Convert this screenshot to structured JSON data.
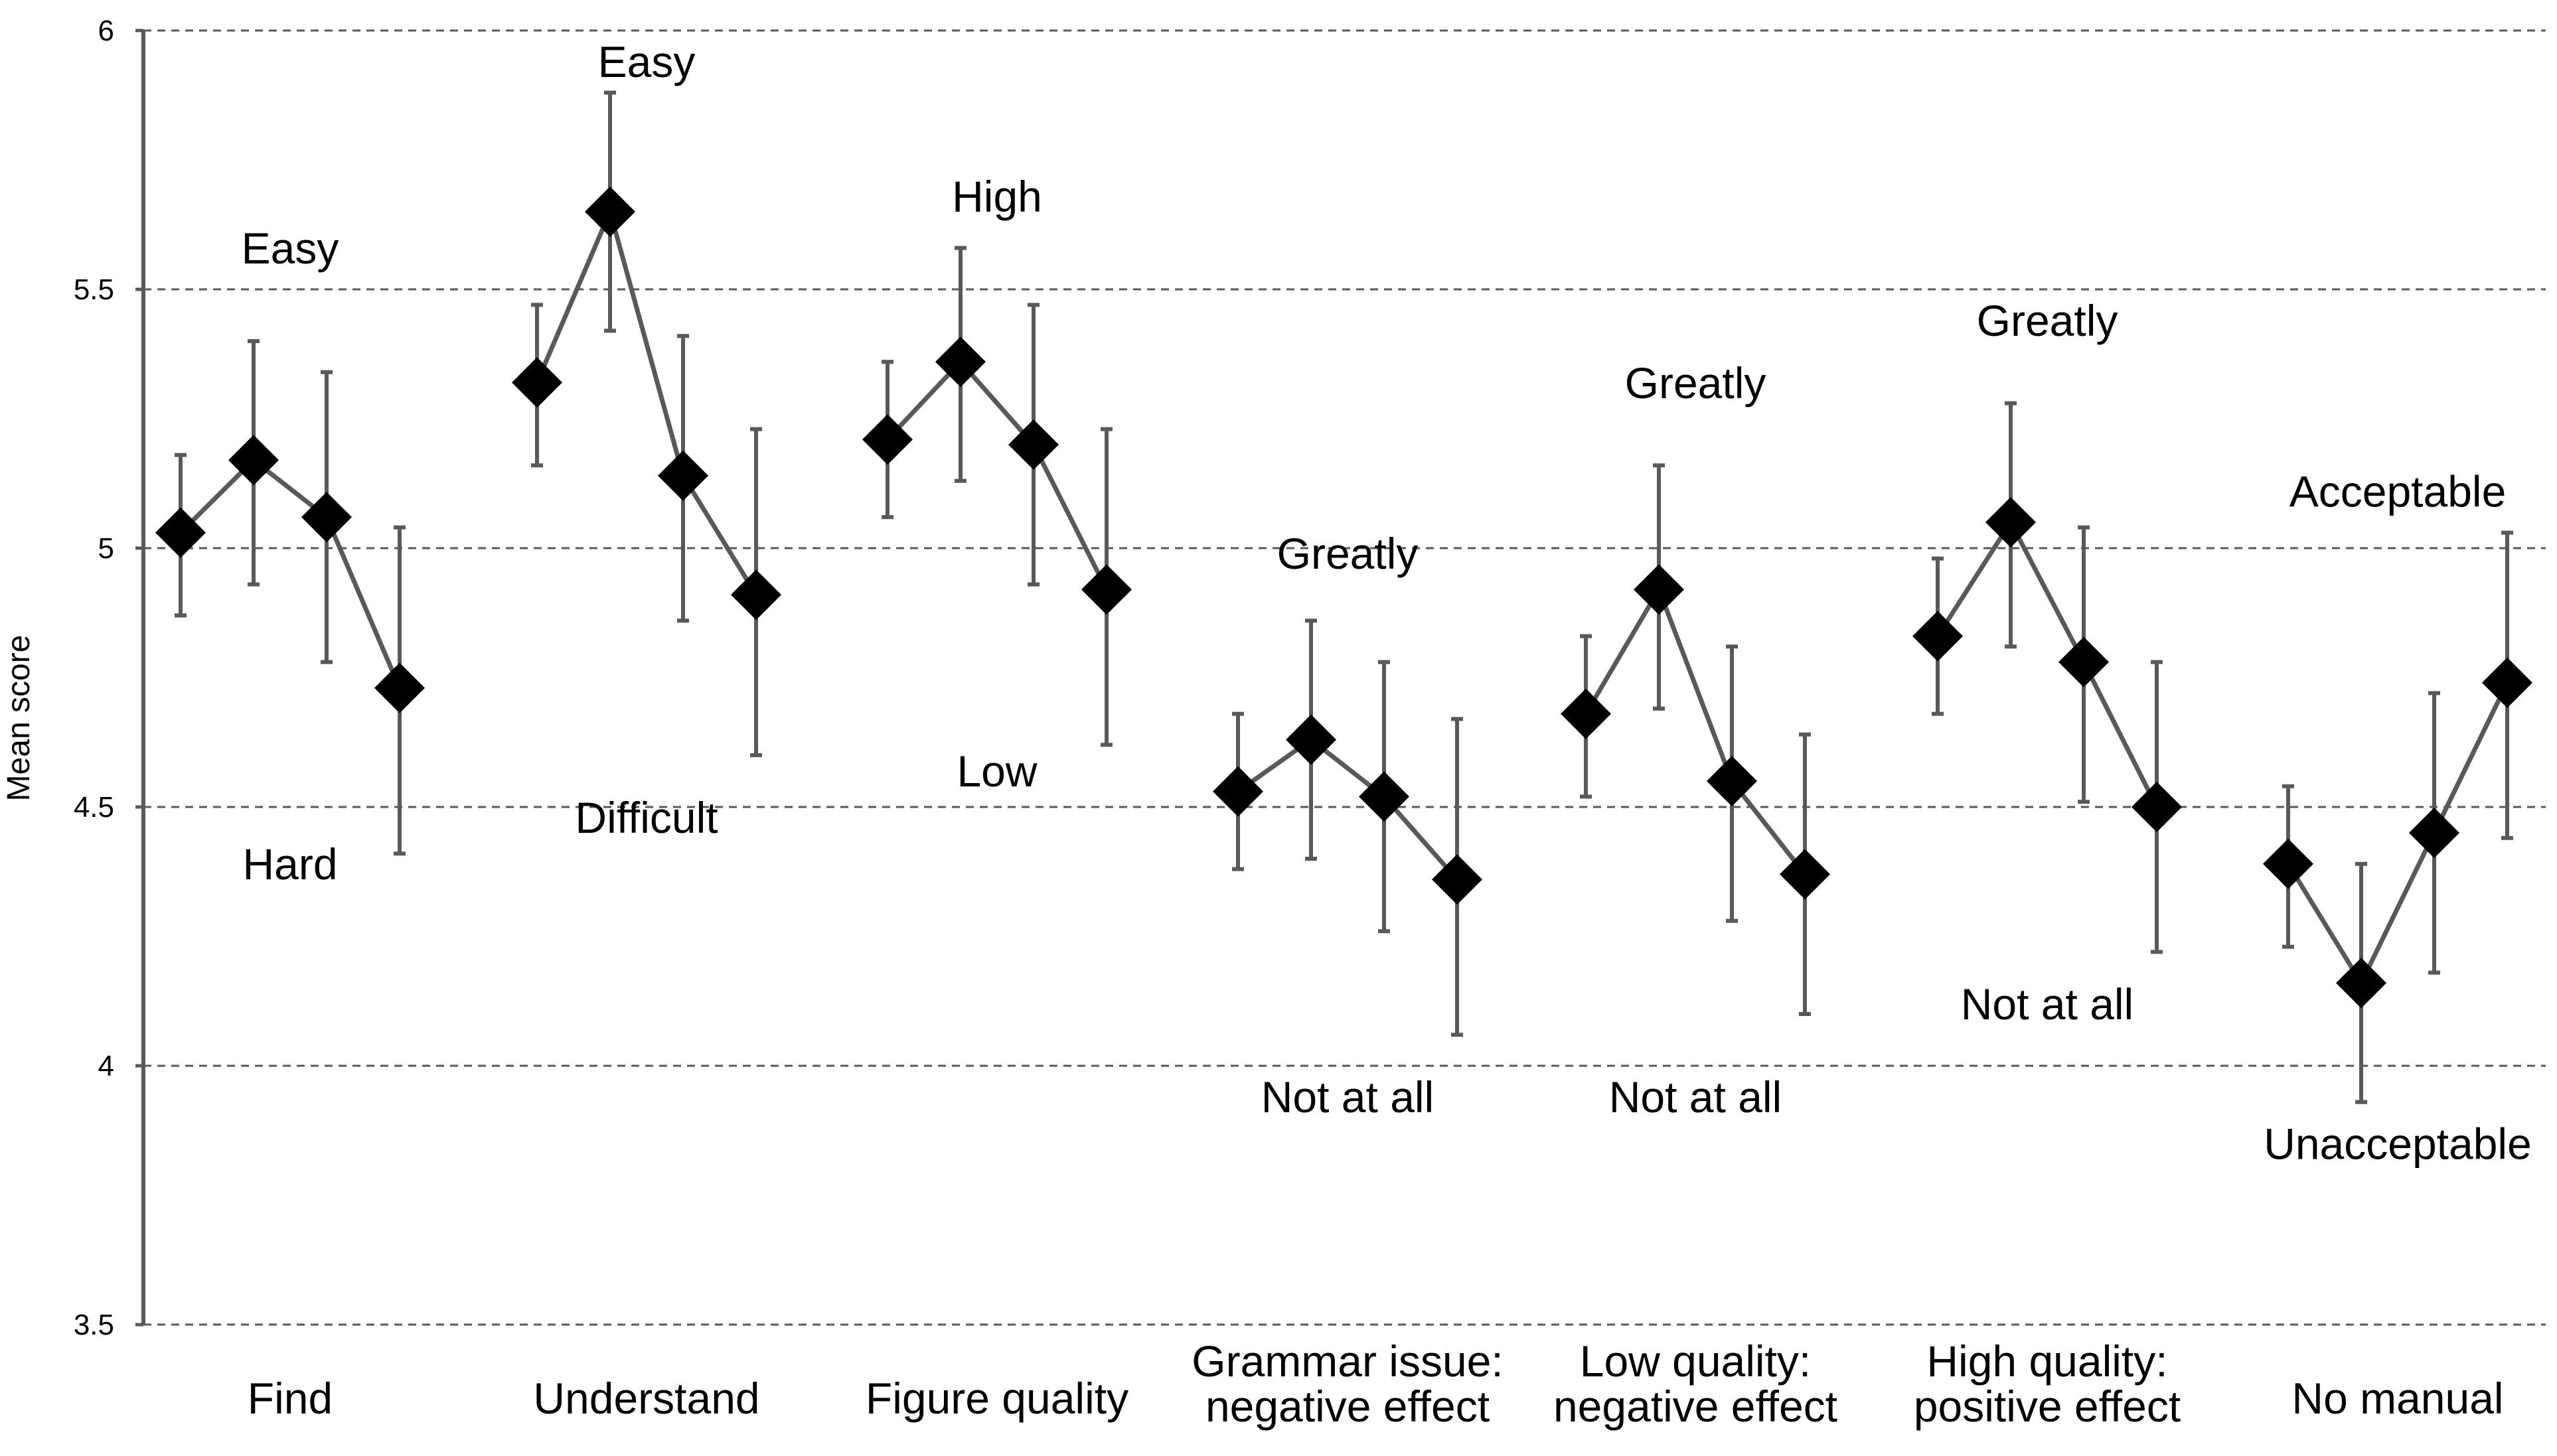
{
  "chart_data": {
    "type": "line",
    "title": "",
    "xlabel": "",
    "ylabel": "Mean score",
    "ylim": [
      3.5,
      6
    ],
    "yticks": [
      "3.5",
      "4",
      "4.5",
      "5",
      "5.5",
      "6"
    ],
    "grid": true,
    "colors": {
      "line": "#595959",
      "marker": "#000000",
      "error": "#595959",
      "grid": "#595959",
      "axis": "#595959"
    },
    "groups": [
      {
        "label_lines": [
          "Find"
        ],
        "points": [
          {
            "y": 5.03,
            "err_low": 4.87,
            "err_high": 5.18
          },
          {
            "y": 5.17,
            "err_low": 4.93,
            "err_high": 5.4
          },
          {
            "y": 5.06,
            "err_low": 4.78,
            "err_high": 5.34
          },
          {
            "y": 4.73,
            "err_low": 4.41,
            "err_high": 5.04
          }
        ],
        "annotations": [
          {
            "text": "Easy",
            "value": 5.55
          },
          {
            "text": "Hard",
            "value": 4.36
          }
        ]
      },
      {
        "label_lines": [
          "Understand"
        ],
        "points": [
          {
            "y": 5.32,
            "err_low": 5.16,
            "err_high": 5.47
          },
          {
            "y": 5.65,
            "err_low": 5.42,
            "err_high": 5.88
          },
          {
            "y": 5.14,
            "err_low": 4.86,
            "err_high": 5.41
          },
          {
            "y": 4.91,
            "err_low": 4.6,
            "err_high": 5.23
          }
        ],
        "annotations": [
          {
            "text": "Easy",
            "value": 5.91
          },
          {
            "text": "Difficult",
            "value": 4.45
          }
        ]
      },
      {
        "label_lines": [
          "Figure quality"
        ],
        "points": [
          {
            "y": 5.21,
            "err_low": 5.06,
            "err_high": 5.36
          },
          {
            "y": 5.36,
            "err_low": 5.13,
            "err_high": 5.58
          },
          {
            "y": 5.2,
            "err_low": 4.93,
            "err_high": 5.47
          },
          {
            "y": 4.92,
            "err_low": 4.62,
            "err_high": 5.23
          }
        ],
        "annotations": [
          {
            "text": "High",
            "value": 5.65
          },
          {
            "text": "Low",
            "value": 4.54
          }
        ]
      },
      {
        "label_lines": [
          "Grammar issue:",
          "negative effect"
        ],
        "points": [
          {
            "y": 4.53,
            "err_low": 4.38,
            "err_high": 4.68
          },
          {
            "y": 4.63,
            "err_low": 4.4,
            "err_high": 4.86
          },
          {
            "y": 4.52,
            "err_low": 4.26,
            "err_high": 4.78
          },
          {
            "y": 4.36,
            "err_low": 4.06,
            "err_high": 4.67
          }
        ],
        "annotations": [
          {
            "text": "Greatly",
            "value": 4.96
          },
          {
            "text": "Not at all",
            "value": 3.91
          }
        ]
      },
      {
        "label_lines": [
          "Low quality:",
          "negative effect"
        ],
        "points": [
          {
            "y": 4.68,
            "err_low": 4.52,
            "err_high": 4.83
          },
          {
            "y": 4.92,
            "err_low": 4.69,
            "err_high": 5.16
          },
          {
            "y": 4.55,
            "err_low": 4.28,
            "err_high": 4.81
          },
          {
            "y": 4.37,
            "err_low": 4.1,
            "err_high": 4.64
          }
        ],
        "annotations": [
          {
            "text": "Greatly",
            "value": 5.29
          },
          {
            "text": "Not at all",
            "value": 3.91
          }
        ]
      },
      {
        "label_lines": [
          "High quality:",
          "positive effect"
        ],
        "points": [
          {
            "y": 4.83,
            "err_low": 4.68,
            "err_high": 4.98
          },
          {
            "y": 5.05,
            "err_low": 4.81,
            "err_high": 5.28
          },
          {
            "y": 4.78,
            "err_low": 4.51,
            "err_high": 5.04
          },
          {
            "y": 4.5,
            "err_low": 4.22,
            "err_high": 4.78
          }
        ],
        "annotations": [
          {
            "text": "Greatly",
            "value": 5.41
          },
          {
            "text": "Not at all",
            "value": 4.09
          }
        ]
      },
      {
        "label_lines": [
          "No manual"
        ],
        "points": [
          {
            "y": 4.39,
            "err_low": 4.23,
            "err_high": 4.54
          },
          {
            "y": 4.16,
            "err_low": 3.93,
            "err_high": 4.39
          },
          {
            "y": 4.45,
            "err_low": 4.18,
            "err_high": 4.72
          },
          {
            "y": 4.74,
            "err_low": 4.44,
            "err_high": 5.03
          }
        ],
        "annotations": [
          {
            "text": "Acceptable",
            "value": 5.08
          },
          {
            "text": "Unacceptable",
            "value": 3.82
          }
        ]
      }
    ]
  }
}
